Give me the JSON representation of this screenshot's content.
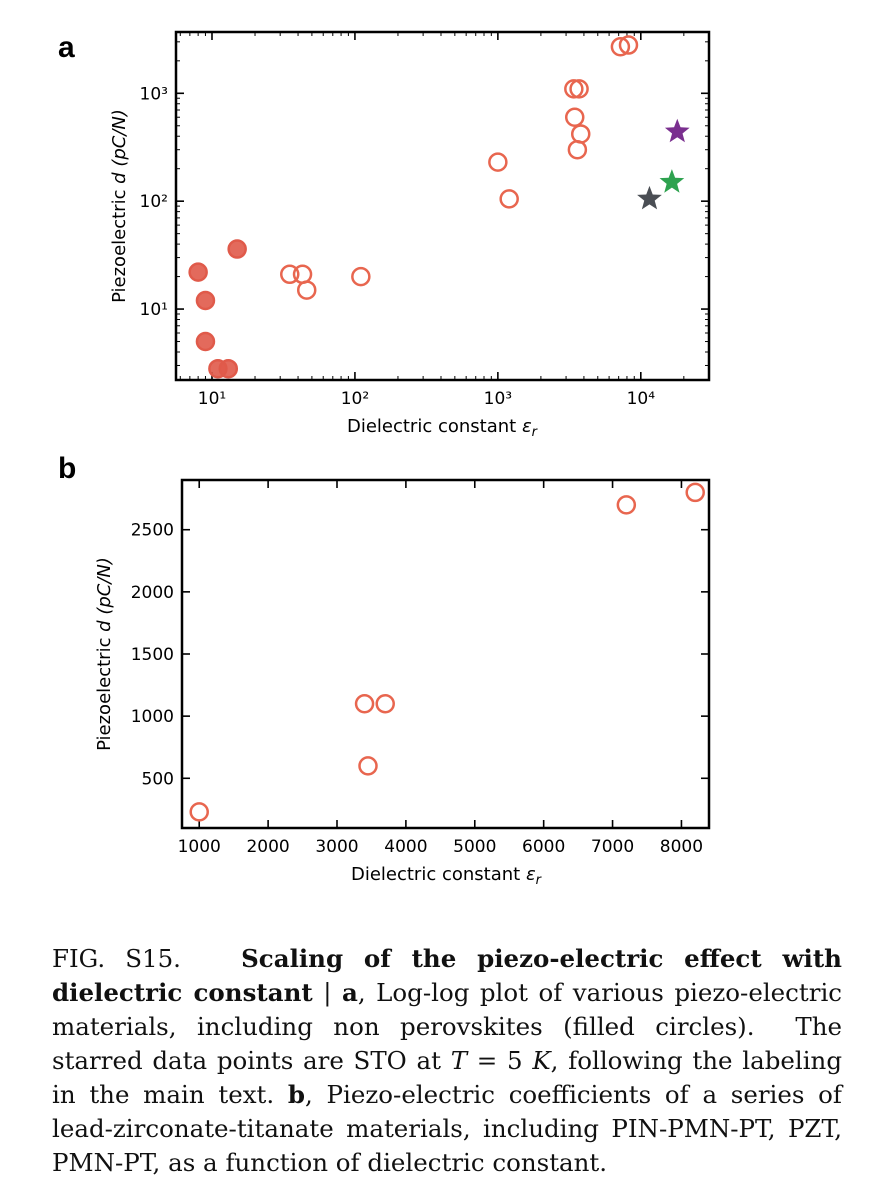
{
  "figure": {
    "panels": [
      {
        "label": "a"
      },
      {
        "label": "b"
      }
    ]
  },
  "chart_data": [
    {
      "type": "scatter",
      "panel": "a",
      "xlabel": "Dielectric constant εr",
      "ylabel": "Piezoelectric d (pC/N)",
      "xscale": "log",
      "yscale": "log",
      "xlim": [
        5.6,
        30000
      ],
      "ylim": [
        2.2,
        3700
      ],
      "xticks": [
        10,
        100,
        1000,
        10000
      ],
      "xtick_labels": [
        "10¹",
        "10²",
        "10³",
        "10⁴"
      ],
      "yticks": [
        10,
        100,
        1000
      ],
      "ytick_labels": [
        "10¹",
        "10²",
        "10³"
      ],
      "series": [
        {
          "marker": "filled-circle",
          "color": "#e05a4a",
          "points": [
            [
              8,
              22
            ],
            [
              9,
              12
            ],
            [
              9,
              5
            ],
            [
              11,
              2.8
            ],
            [
              13,
              2.8
            ],
            [
              15,
              36
            ]
          ]
        },
        {
          "marker": "open-circle",
          "color": "#e8664f",
          "points": [
            [
              35,
              21
            ],
            [
              43,
              21
            ],
            [
              46,
              15
            ],
            [
              110,
              20
            ],
            [
              1000,
              230
            ],
            [
              1200,
              105
            ],
            [
              3400,
              1100
            ],
            [
              3700,
              1100
            ],
            [
              3450,
              600
            ],
            [
              3800,
              420
            ],
            [
              3600,
              300
            ],
            [
              7200,
              2700
            ],
            [
              8200,
              2800
            ]
          ]
        },
        {
          "marker": "star",
          "color": "#4a4e54",
          "points": [
            [
              11500,
              105
            ]
          ]
        },
        {
          "marker": "star",
          "color": "#2ea24f",
          "points": [
            [
              16500,
              150
            ]
          ]
        },
        {
          "marker": "star",
          "color": "#7a2f8f",
          "points": [
            [
              18000,
              440
            ]
          ]
        }
      ]
    },
    {
      "type": "scatter",
      "panel": "b",
      "xlabel": "Dielectric constant εr",
      "ylabel": "Piezoelectric d (pC/N)",
      "xscale": "linear",
      "yscale": "linear",
      "xlim": [
        750,
        8400
      ],
      "ylim": [
        100,
        2900
      ],
      "xticks": [
        1000,
        2000,
        3000,
        4000,
        5000,
        6000,
        7000,
        8000
      ],
      "xtick_labels": [
        "1000",
        "2000",
        "3000",
        "4000",
        "5000",
        "6000",
        "7000",
        "8000"
      ],
      "yticks": [
        500,
        1000,
        1500,
        2000,
        2500
      ],
      "ytick_labels": [
        "500",
        "1000",
        "1500",
        "2000",
        "2500"
      ],
      "series": [
        {
          "marker": "open-circle",
          "color": "#e8664f",
          "points": [
            [
              1000,
              230
            ],
            [
              3400,
              1100
            ],
            [
              3700,
              1100
            ],
            [
              3450,
              600
            ],
            [
              7200,
              2700
            ],
            [
              8200,
              2800
            ]
          ]
        }
      ]
    }
  ],
  "caption": {
    "fig_label": "FIG. S15.",
    "title_bold": "Scaling of the piezo-electric effect with dielectric constant",
    "separator": "|",
    "part_a_label": "a",
    "part_a_text": ", Log-log plot of various piezo-electric materials, including non perovskites (filled circles).",
    "starred_text_1": "The starred data points are STO at",
    "math_T": "T",
    "math_eq": "= 5",
    "math_K": "K",
    "starred_text_2": ", following the labeling in the main text.",
    "part_b_label": "b",
    "part_b_text": ", Piezo-electric coefficients of a series of lead-zirconate-titanate materials, including PIN-PMN-PT, PZT, PMN-PT, as a function of dielectric constant."
  }
}
